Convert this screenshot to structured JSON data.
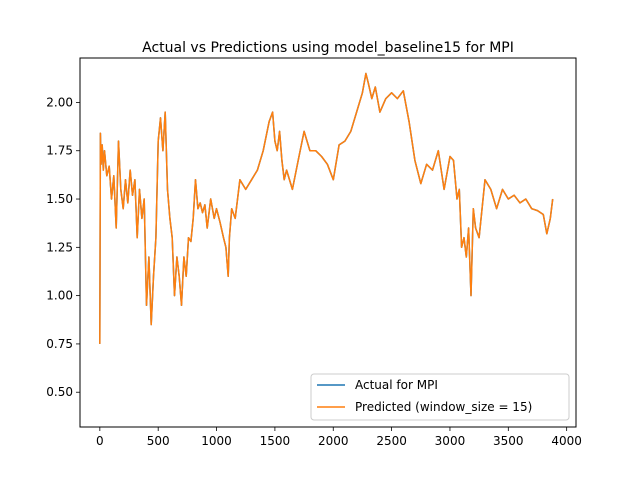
{
  "chart_data": {
    "type": "line",
    "title": "Actual vs Predictions using model_baseline15 for MPI",
    "xlabel": "",
    "ylabel": "",
    "xlim": [
      -170,
      4080
    ],
    "ylim": [
      0.32,
      2.23
    ],
    "xticks": [
      0,
      500,
      1000,
      1500,
      2000,
      2500,
      3000,
      3500,
      4000
    ],
    "xtick_labels": [
      "0",
      "500",
      "1000",
      "1500",
      "2000",
      "2500",
      "3000",
      "3500",
      "4000"
    ],
    "yticks": [
      0.5,
      0.75,
      1.0,
      1.25,
      1.5,
      1.75,
      2.0
    ],
    "ytick_labels": [
      "0.50",
      "0.75",
      "1.00",
      "1.25",
      "1.50",
      "1.75",
      "2.00"
    ],
    "grid": false,
    "legend_position": "lower-right",
    "series": [
      {
        "name": "Actual for MPI",
        "color": "#1f77b4",
        "x": [
          0,
          5,
          10,
          20,
          30,
          40,
          60,
          80,
          100,
          120,
          140,
          160,
          180,
          200,
          220,
          240,
          260,
          280,
          300,
          320,
          340,
          360,
          380,
          400,
          420,
          440,
          460,
          480,
          500,
          520,
          540,
          560,
          580,
          600,
          620,
          640,
          660,
          680,
          700,
          720,
          740,
          760,
          780,
          800,
          820,
          840,
          860,
          880,
          900,
          920,
          950,
          980,
          1000,
          1030,
          1060,
          1080,
          1100,
          1110,
          1130,
          1160,
          1200,
          1250,
          1300,
          1350,
          1400,
          1450,
          1480,
          1500,
          1520,
          1540,
          1560,
          1580,
          1600,
          1650,
          1700,
          1750,
          1800,
          1850,
          1900,
          1950,
          2000,
          2050,
          2100,
          2150,
          2200,
          2250,
          2280,
          2300,
          2330,
          2360,
          2400,
          2450,
          2500,
          2550,
          2600,
          2650,
          2700,
          2750,
          2800,
          2850,
          2900,
          2950,
          3000,
          3030,
          3060,
          3080,
          3100,
          3120,
          3140,
          3160,
          3180,
          3200,
          3220,
          3250,
          3300,
          3350,
          3400,
          3450,
          3500,
          3550,
          3600,
          3650,
          3700,
          3750,
          3800,
          3830,
          3860,
          3880
        ],
        "values": [
          0.75,
          1.84,
          1.68,
          1.78,
          1.65,
          1.75,
          1.62,
          1.67,
          1.5,
          1.62,
          1.35,
          1.8,
          1.55,
          1.45,
          1.6,
          1.48,
          1.65,
          1.52,
          1.6,
          1.3,
          1.55,
          1.4,
          1.5,
          0.95,
          1.2,
          0.85,
          1.1,
          1.3,
          1.8,
          1.92,
          1.75,
          1.95,
          1.55,
          1.4,
          1.3,
          1.0,
          1.2,
          1.1,
          0.95,
          1.2,
          1.1,
          1.3,
          1.28,
          1.4,
          1.6,
          1.45,
          1.48,
          1.43,
          1.47,
          1.35,
          1.5,
          1.4,
          1.45,
          1.38,
          1.3,
          1.25,
          1.1,
          1.3,
          1.45,
          1.4,
          1.6,
          1.55,
          1.6,
          1.65,
          1.75,
          1.9,
          1.95,
          1.8,
          1.75,
          1.85,
          1.7,
          1.6,
          1.65,
          1.55,
          1.7,
          1.85,
          1.75,
          1.75,
          1.72,
          1.68,
          1.6,
          1.78,
          1.8,
          1.85,
          1.95,
          2.05,
          2.15,
          2.1,
          2.02,
          2.08,
          1.95,
          2.02,
          2.05,
          2.02,
          2.06,
          1.9,
          1.7,
          1.58,
          1.68,
          1.65,
          1.75,
          1.55,
          1.72,
          1.7,
          1.5,
          1.55,
          1.25,
          1.3,
          1.2,
          1.35,
          1.0,
          1.45,
          1.35,
          1.3,
          1.6,
          1.55,
          1.45,
          1.55,
          1.5,
          1.52,
          1.48,
          1.5,
          1.45,
          1.44,
          1.42,
          1.32,
          1.4,
          1.5
        ]
      },
      {
        "name": "Predicted (window_size = 15)",
        "color": "#ff7f0e",
        "x": [
          0,
          5,
          10,
          20,
          30,
          40,
          60,
          80,
          100,
          120,
          140,
          160,
          180,
          200,
          220,
          240,
          260,
          280,
          300,
          320,
          340,
          360,
          380,
          400,
          420,
          440,
          460,
          480,
          500,
          520,
          540,
          560,
          580,
          600,
          620,
          640,
          660,
          680,
          700,
          720,
          740,
          760,
          780,
          800,
          820,
          840,
          860,
          880,
          900,
          920,
          950,
          980,
          1000,
          1030,
          1060,
          1080,
          1100,
          1110,
          1130,
          1160,
          1200,
          1250,
          1300,
          1350,
          1400,
          1450,
          1480,
          1500,
          1520,
          1540,
          1560,
          1580,
          1600,
          1650,
          1700,
          1750,
          1800,
          1850,
          1900,
          1950,
          2000,
          2050,
          2100,
          2150,
          2200,
          2250,
          2280,
          2300,
          2330,
          2360,
          2400,
          2450,
          2500,
          2550,
          2600,
          2650,
          2700,
          2750,
          2800,
          2850,
          2900,
          2950,
          3000,
          3030,
          3060,
          3080,
          3100,
          3120,
          3140,
          3160,
          3180,
          3200,
          3220,
          3250,
          3300,
          3350,
          3400,
          3450,
          3500,
          3550,
          3600,
          3650,
          3700,
          3750,
          3800,
          3830,
          3860,
          3880
        ],
        "values": [
          0.75,
          1.84,
          1.68,
          1.78,
          1.65,
          1.75,
          1.62,
          1.67,
          1.5,
          1.62,
          1.35,
          1.8,
          1.55,
          1.45,
          1.6,
          1.48,
          1.65,
          1.52,
          1.6,
          1.3,
          1.55,
          1.4,
          1.5,
          0.95,
          1.2,
          0.85,
          1.1,
          1.3,
          1.8,
          1.92,
          1.75,
          1.95,
          1.55,
          1.4,
          1.3,
          1.0,
          1.2,
          1.1,
          0.95,
          1.2,
          1.1,
          1.3,
          1.28,
          1.4,
          1.6,
          1.45,
          1.48,
          1.43,
          1.47,
          1.35,
          1.5,
          1.4,
          1.45,
          1.38,
          1.3,
          1.25,
          1.1,
          1.3,
          1.45,
          1.4,
          1.6,
          1.55,
          1.6,
          1.65,
          1.75,
          1.9,
          1.95,
          1.8,
          1.75,
          1.85,
          1.7,
          1.6,
          1.65,
          1.55,
          1.7,
          1.85,
          1.75,
          1.75,
          1.72,
          1.68,
          1.6,
          1.78,
          1.8,
          1.85,
          1.95,
          2.05,
          2.15,
          2.1,
          2.02,
          2.08,
          1.95,
          2.02,
          2.05,
          2.02,
          2.06,
          1.9,
          1.7,
          1.58,
          1.68,
          1.65,
          1.75,
          1.55,
          1.72,
          1.7,
          1.5,
          1.55,
          1.25,
          1.3,
          1.2,
          1.35,
          1.0,
          1.45,
          1.35,
          1.3,
          1.6,
          1.55,
          1.45,
          1.55,
          1.5,
          1.52,
          1.48,
          1.5,
          1.45,
          1.44,
          1.42,
          1.32,
          1.4,
          1.5
        ]
      }
    ]
  }
}
